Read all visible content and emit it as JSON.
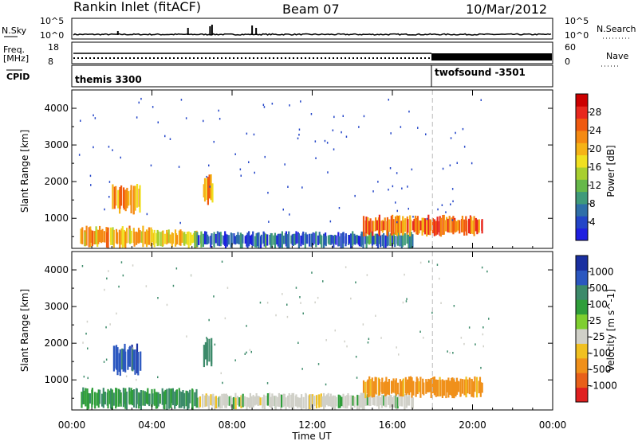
{
  "header": {
    "station": "Rankin Inlet (fitACF)",
    "beam": "Beam 07",
    "date": "10/Mar/2012"
  },
  "noise_panel": {
    "left_label": "N.Sky",
    "right_label": "N.Search",
    "ticks_left": [
      "10^5",
      "10^0"
    ],
    "ticks_right": [
      "10^5",
      "10^0"
    ]
  },
  "freq_panel": {
    "left_label_1": "Freq.",
    "left_label_2": "[MHz]",
    "right_label": "Nave",
    "ticks_left": [
      "18",
      "8"
    ],
    "ticks_right": [
      "60",
      "0"
    ]
  },
  "cpid_panel": {
    "label": "CPID",
    "programs": [
      {
        "name": "themis 3300",
        "start_hour": 0
      },
      {
        "name": "twofsound -3501",
        "start_hour": 18
      }
    ]
  },
  "x_axis": {
    "label": "Time UT",
    "ticks": [
      "00:00",
      "04:00",
      "08:00",
      "12:00",
      "16:00",
      "20:00",
      "00:00"
    ]
  },
  "chart_data": [
    {
      "type": "heatmap",
      "title": "",
      "xlabel": "Time UT",
      "ylabel": "Slant Range [km]",
      "xlim": [
        0,
        24
      ],
      "ylim": [
        180,
        4500
      ],
      "yticks": [
        "1000",
        "2000",
        "3000",
        "4000"
      ],
      "colorbar": {
        "label": "Power [dB]",
        "range": [
          0,
          32
        ],
        "ticks": [
          "4",
          "8",
          "12",
          "16",
          "20",
          "24",
          "28"
        ]
      },
      "echo_regions": [
        {
          "t_start": 0.4,
          "t_end": 4.0,
          "r_start": 180,
          "r_end": 800,
          "power_db": 20
        },
        {
          "t_start": 4.0,
          "t_end": 6.2,
          "r_start": 180,
          "r_end": 700,
          "power_db": 18
        },
        {
          "t_start": 6.2,
          "t_end": 17.0,
          "r_start": 180,
          "r_end": 650,
          "power_db": 6
        },
        {
          "t_start": 2.0,
          "t_end": 3.4,
          "r_start": 1100,
          "r_end": 2000,
          "power_db": 22
        },
        {
          "t_start": 6.5,
          "t_end": 7.0,
          "r_start": 1300,
          "r_end": 2200,
          "power_db": 22
        },
        {
          "t_start": 14.5,
          "t_end": 20.5,
          "r_start": 500,
          "r_end": 1100,
          "power_db": 24
        }
      ]
    },
    {
      "type": "heatmap",
      "title": "",
      "xlabel": "Time UT",
      "ylabel": "Slant Range [km]",
      "xlim": [
        0,
        24
      ],
      "ylim": [
        180,
        4500
      ],
      "yticks": [
        "1000",
        "2000",
        "3000",
        "4000"
      ],
      "colorbar": {
        "label": "Velocity [m s^-1]",
        "range": [
          -1250,
          1250
        ],
        "ticks": [
          "1000",
          "500",
          "100",
          "25",
          "-25",
          "-100",
          "-500",
          "-1000"
        ]
      },
      "echo_regions": [
        {
          "t_start": 0.4,
          "t_end": 6.2,
          "r_start": 180,
          "r_end": 800,
          "velocity": 100
        },
        {
          "t_start": 6.2,
          "t_end": 17.0,
          "r_start": 180,
          "r_end": 650,
          "velocity": 0
        },
        {
          "t_start": 2.0,
          "t_end": 3.4,
          "r_start": 1100,
          "r_end": 2000,
          "velocity": 800
        },
        {
          "t_start": 6.5,
          "t_end": 7.0,
          "r_start": 1300,
          "r_end": 2200,
          "velocity": 300
        },
        {
          "t_start": 14.5,
          "t_end": 20.5,
          "r_start": 500,
          "r_end": 1100,
          "velocity": -150
        }
      ]
    }
  ]
}
